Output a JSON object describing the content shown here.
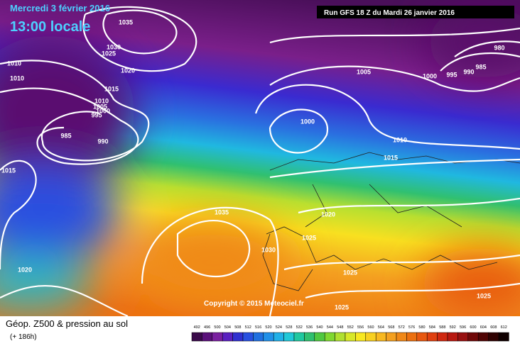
{
  "header": {
    "date": "Mercredi 3 février 2016",
    "time": "13:00 locale",
    "run": "Run GFS 18 Z du Mardi 26 janvier 2016"
  },
  "isobar_labels": [
    "1035",
    "1030",
    "1025",
    "1010",
    "1010",
    "1020",
    "1015",
    "1010",
    "1005",
    "1000",
    "995",
    "985",
    "990",
    "1015",
    "1005",
    "1000",
    "1010",
    "1015",
    "1000",
    "995",
    "990",
    "985",
    "980",
    "1035",
    "1020",
    "1030",
    "1025",
    "1020",
    "1025",
    "1025",
    "1025"
  ],
  "copyright": "Copyright © 2015 Meteociel.fr",
  "footer": {
    "title": "Géop. Z500 & pression au sol",
    "lead": "(+ 186h)"
  },
  "scale": [
    492,
    496,
    500,
    504,
    508,
    512,
    516,
    520,
    524,
    528,
    532,
    536,
    540,
    544,
    548,
    552,
    556,
    560,
    564,
    568,
    572,
    576,
    580,
    584,
    588,
    592,
    596,
    600,
    604,
    608,
    612
  ]
}
